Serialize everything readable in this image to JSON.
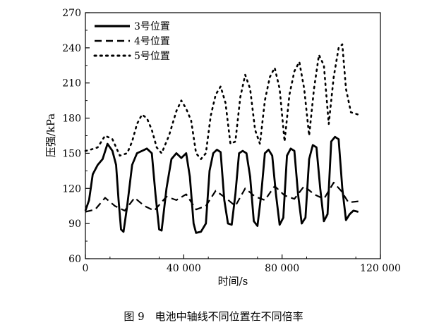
{
  "chart_data": {
    "type": "line",
    "xlabel": "时间/s",
    "ylabel": "压强/kPa",
    "xlim": [
      0,
      120000
    ],
    "ylim": [
      60,
      270
    ],
    "xticks": [
      0,
      40000,
      80000,
      120000
    ],
    "xtick_labels": [
      "0",
      "40 000",
      "80 000",
      "120 000"
    ],
    "yticks": [
      60,
      90,
      120,
      150,
      180,
      210,
      240,
      270
    ],
    "ytick_labels": [
      "60",
      "90",
      "120",
      "150",
      "180",
      "210",
      "240",
      "270"
    ],
    "grid": false,
    "legend_position": "top-left",
    "series": [
      {
        "name": "3号位置",
        "style": "solid",
        "color": "#000000",
        "points": [
          [
            0,
            101
          ],
          [
            1500,
            110
          ],
          [
            3000,
            132
          ],
          [
            5000,
            140
          ],
          [
            7000,
            145
          ],
          [
            9000,
            158
          ],
          [
            11000,
            152
          ],
          [
            12500,
            140
          ],
          [
            13500,
            110
          ],
          [
            14500,
            85
          ],
          [
            15500,
            83
          ],
          [
            17000,
            105
          ],
          [
            19000,
            140
          ],
          [
            21000,
            150
          ],
          [
            23000,
            152
          ],
          [
            25000,
            154
          ],
          [
            27000,
            150
          ],
          [
            28500,
            115
          ],
          [
            30000,
            85
          ],
          [
            31000,
            84
          ],
          [
            33000,
            120
          ],
          [
            35000,
            145
          ],
          [
            37000,
            150
          ],
          [
            39000,
            146
          ],
          [
            41000,
            150
          ],
          [
            42500,
            130
          ],
          [
            44000,
            90
          ],
          [
            45000,
            82
          ],
          [
            47000,
            83
          ],
          [
            49000,
            90
          ],
          [
            50500,
            135
          ],
          [
            52000,
            150
          ],
          [
            53500,
            153
          ],
          [
            55000,
            151
          ],
          [
            56500,
            110
          ],
          [
            58000,
            90
          ],
          [
            59500,
            89
          ],
          [
            61000,
            115
          ],
          [
            62500,
            150
          ],
          [
            64000,
            152
          ],
          [
            65500,
            150
          ],
          [
            67000,
            130
          ],
          [
            68500,
            92
          ],
          [
            70000,
            88
          ],
          [
            71500,
            115
          ],
          [
            73000,
            150
          ],
          [
            74500,
            153
          ],
          [
            76000,
            148
          ],
          [
            77500,
            115
          ],
          [
            79000,
            89
          ],
          [
            80500,
            95
          ],
          [
            82000,
            148
          ],
          [
            83500,
            154
          ],
          [
            85000,
            152
          ],
          [
            86500,
            115
          ],
          [
            88000,
            90
          ],
          [
            89500,
            95
          ],
          [
            91000,
            145
          ],
          [
            92500,
            157
          ],
          [
            94000,
            155
          ],
          [
            95500,
            120
          ],
          [
            97000,
            92
          ],
          [
            98500,
            98
          ],
          [
            100000,
            160
          ],
          [
            101500,
            164
          ],
          [
            103000,
            162
          ],
          [
            104500,
            120
          ],
          [
            106000,
            93
          ],
          [
            107500,
            98
          ],
          [
            109000,
            101
          ],
          [
            111000,
            100
          ]
        ]
      },
      {
        "name": "4号位置",
        "style": "dashed",
        "color": "#000000",
        "points": [
          [
            0,
            100
          ],
          [
            4000,
            102
          ],
          [
            8000,
            112
          ],
          [
            12000,
            105
          ],
          [
            16000,
            101
          ],
          [
            20000,
            112
          ],
          [
            24000,
            105
          ],
          [
            28000,
            101
          ],
          [
            33000,
            113
          ],
          [
            37000,
            110
          ],
          [
            41000,
            115
          ],
          [
            45000,
            102
          ],
          [
            49000,
            105
          ],
          [
            53000,
            118
          ],
          [
            57000,
            112
          ],
          [
            61000,
            105
          ],
          [
            65000,
            120
          ],
          [
            69000,
            113
          ],
          [
            73000,
            110
          ],
          [
            77000,
            122
          ],
          [
            81000,
            114
          ],
          [
            85000,
            111
          ],
          [
            89000,
            122
          ],
          [
            93000,
            115
          ],
          [
            97000,
            111
          ],
          [
            101000,
            125
          ],
          [
            104000,
            118
          ],
          [
            107000,
            108
          ],
          [
            111000,
            109
          ]
        ]
      },
      {
        "name": "5号位置",
        "style": "dotted",
        "color": "#000000",
        "points": [
          [
            0,
            152
          ],
          [
            2000,
            153
          ],
          [
            5000,
            155
          ],
          [
            8000,
            165
          ],
          [
            11000,
            162
          ],
          [
            14000,
            148
          ],
          [
            17000,
            150
          ],
          [
            19000,
            160
          ],
          [
            21000,
            175
          ],
          [
            23000,
            183
          ],
          [
            25000,
            180
          ],
          [
            27000,
            170
          ],
          [
            29000,
            155
          ],
          [
            31000,
            150
          ],
          [
            34000,
            165
          ],
          [
            37000,
            186
          ],
          [
            39000,
            195
          ],
          [
            41000,
            188
          ],
          [
            43000,
            178
          ],
          [
            45000,
            150
          ],
          [
            47000,
            145
          ],
          [
            49000,
            150
          ],
          [
            51000,
            182
          ],
          [
            53000,
            200
          ],
          [
            55000,
            207
          ],
          [
            57000,
            193
          ],
          [
            59000,
            158
          ],
          [
            61000,
            160
          ],
          [
            63000,
            198
          ],
          [
            65000,
            217
          ],
          [
            67000,
            205
          ],
          [
            69000,
            170
          ],
          [
            71000,
            158
          ],
          [
            73000,
            195
          ],
          [
            75000,
            215
          ],
          [
            77000,
            223
          ],
          [
            79000,
            205
          ],
          [
            81000,
            160
          ],
          [
            83000,
            200
          ],
          [
            85000,
            220
          ],
          [
            87000,
            228
          ],
          [
            89000,
            205
          ],
          [
            91000,
            165
          ],
          [
            93000,
            205
          ],
          [
            95000,
            234
          ],
          [
            97000,
            225
          ],
          [
            99000,
            175
          ],
          [
            101000,
            215
          ],
          [
            103000,
            240
          ],
          [
            104500,
            243
          ],
          [
            106000,
            205
          ],
          [
            108000,
            185
          ],
          [
            111000,
            183
          ]
        ]
      }
    ]
  },
  "caption": "图 9　电池中轴线不同位置在不同倍率"
}
